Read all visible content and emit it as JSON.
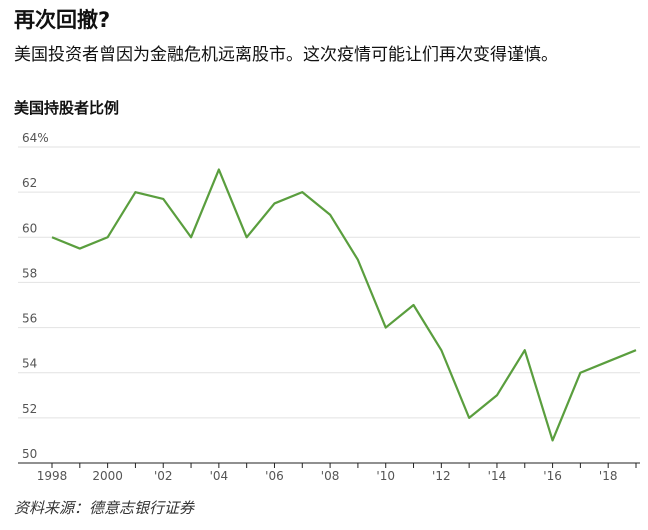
{
  "chart_data": {
    "type": "line",
    "title": "再次回撤?",
    "subtitle": "美国投资者曾因为金融危机远离股市。这次疫情可能让们再次变得谨慎。",
    "y_label": "美国持股者比例",
    "source": "资料来源：德意志银行证券",
    "x": [
      1998,
      1999,
      2000,
      2001,
      2002,
      2003,
      2004,
      2005,
      2006,
      2007,
      2008,
      2009,
      2010,
      2011,
      2012,
      2013,
      2014,
      2015,
      2016,
      2017,
      2018,
      2019
    ],
    "series": [
      {
        "color": "#5a9e3e",
        "values": [
          60,
          59.5,
          60,
          62,
          61.7,
          60,
          63,
          60,
          61.5,
          62,
          61,
          59,
          56,
          57,
          55,
          52,
          53,
          55,
          51,
          54,
          54.5,
          55
        ]
      }
    ],
    "xlim": [
      1998,
      2019
    ],
    "xticks": [
      {
        "value": 1998,
        "label": "1998"
      },
      2000,
      {
        "value": 2002,
        "label": "'02"
      },
      {
        "value": 2004,
        "label": "'04"
      },
      {
        "value": 2006,
        "label": "'06"
      },
      {
        "value": 2008,
        "label": "'08"
      },
      {
        "value": 2010,
        "label": "'10"
      },
      {
        "value": 2012,
        "label": "'12"
      },
      {
        "value": 2014,
        "label": "'14"
      },
      {
        "value": 2016,
        "label": "'16"
      },
      {
        "value": 2018,
        "label": "'18"
      }
    ],
    "ylim": [
      50,
      64
    ],
    "yticks": [
      50,
      52,
      54,
      56,
      58,
      60,
      62,
      {
        "value": 64,
        "label": "64%"
      }
    ],
    "grid": true
  }
}
